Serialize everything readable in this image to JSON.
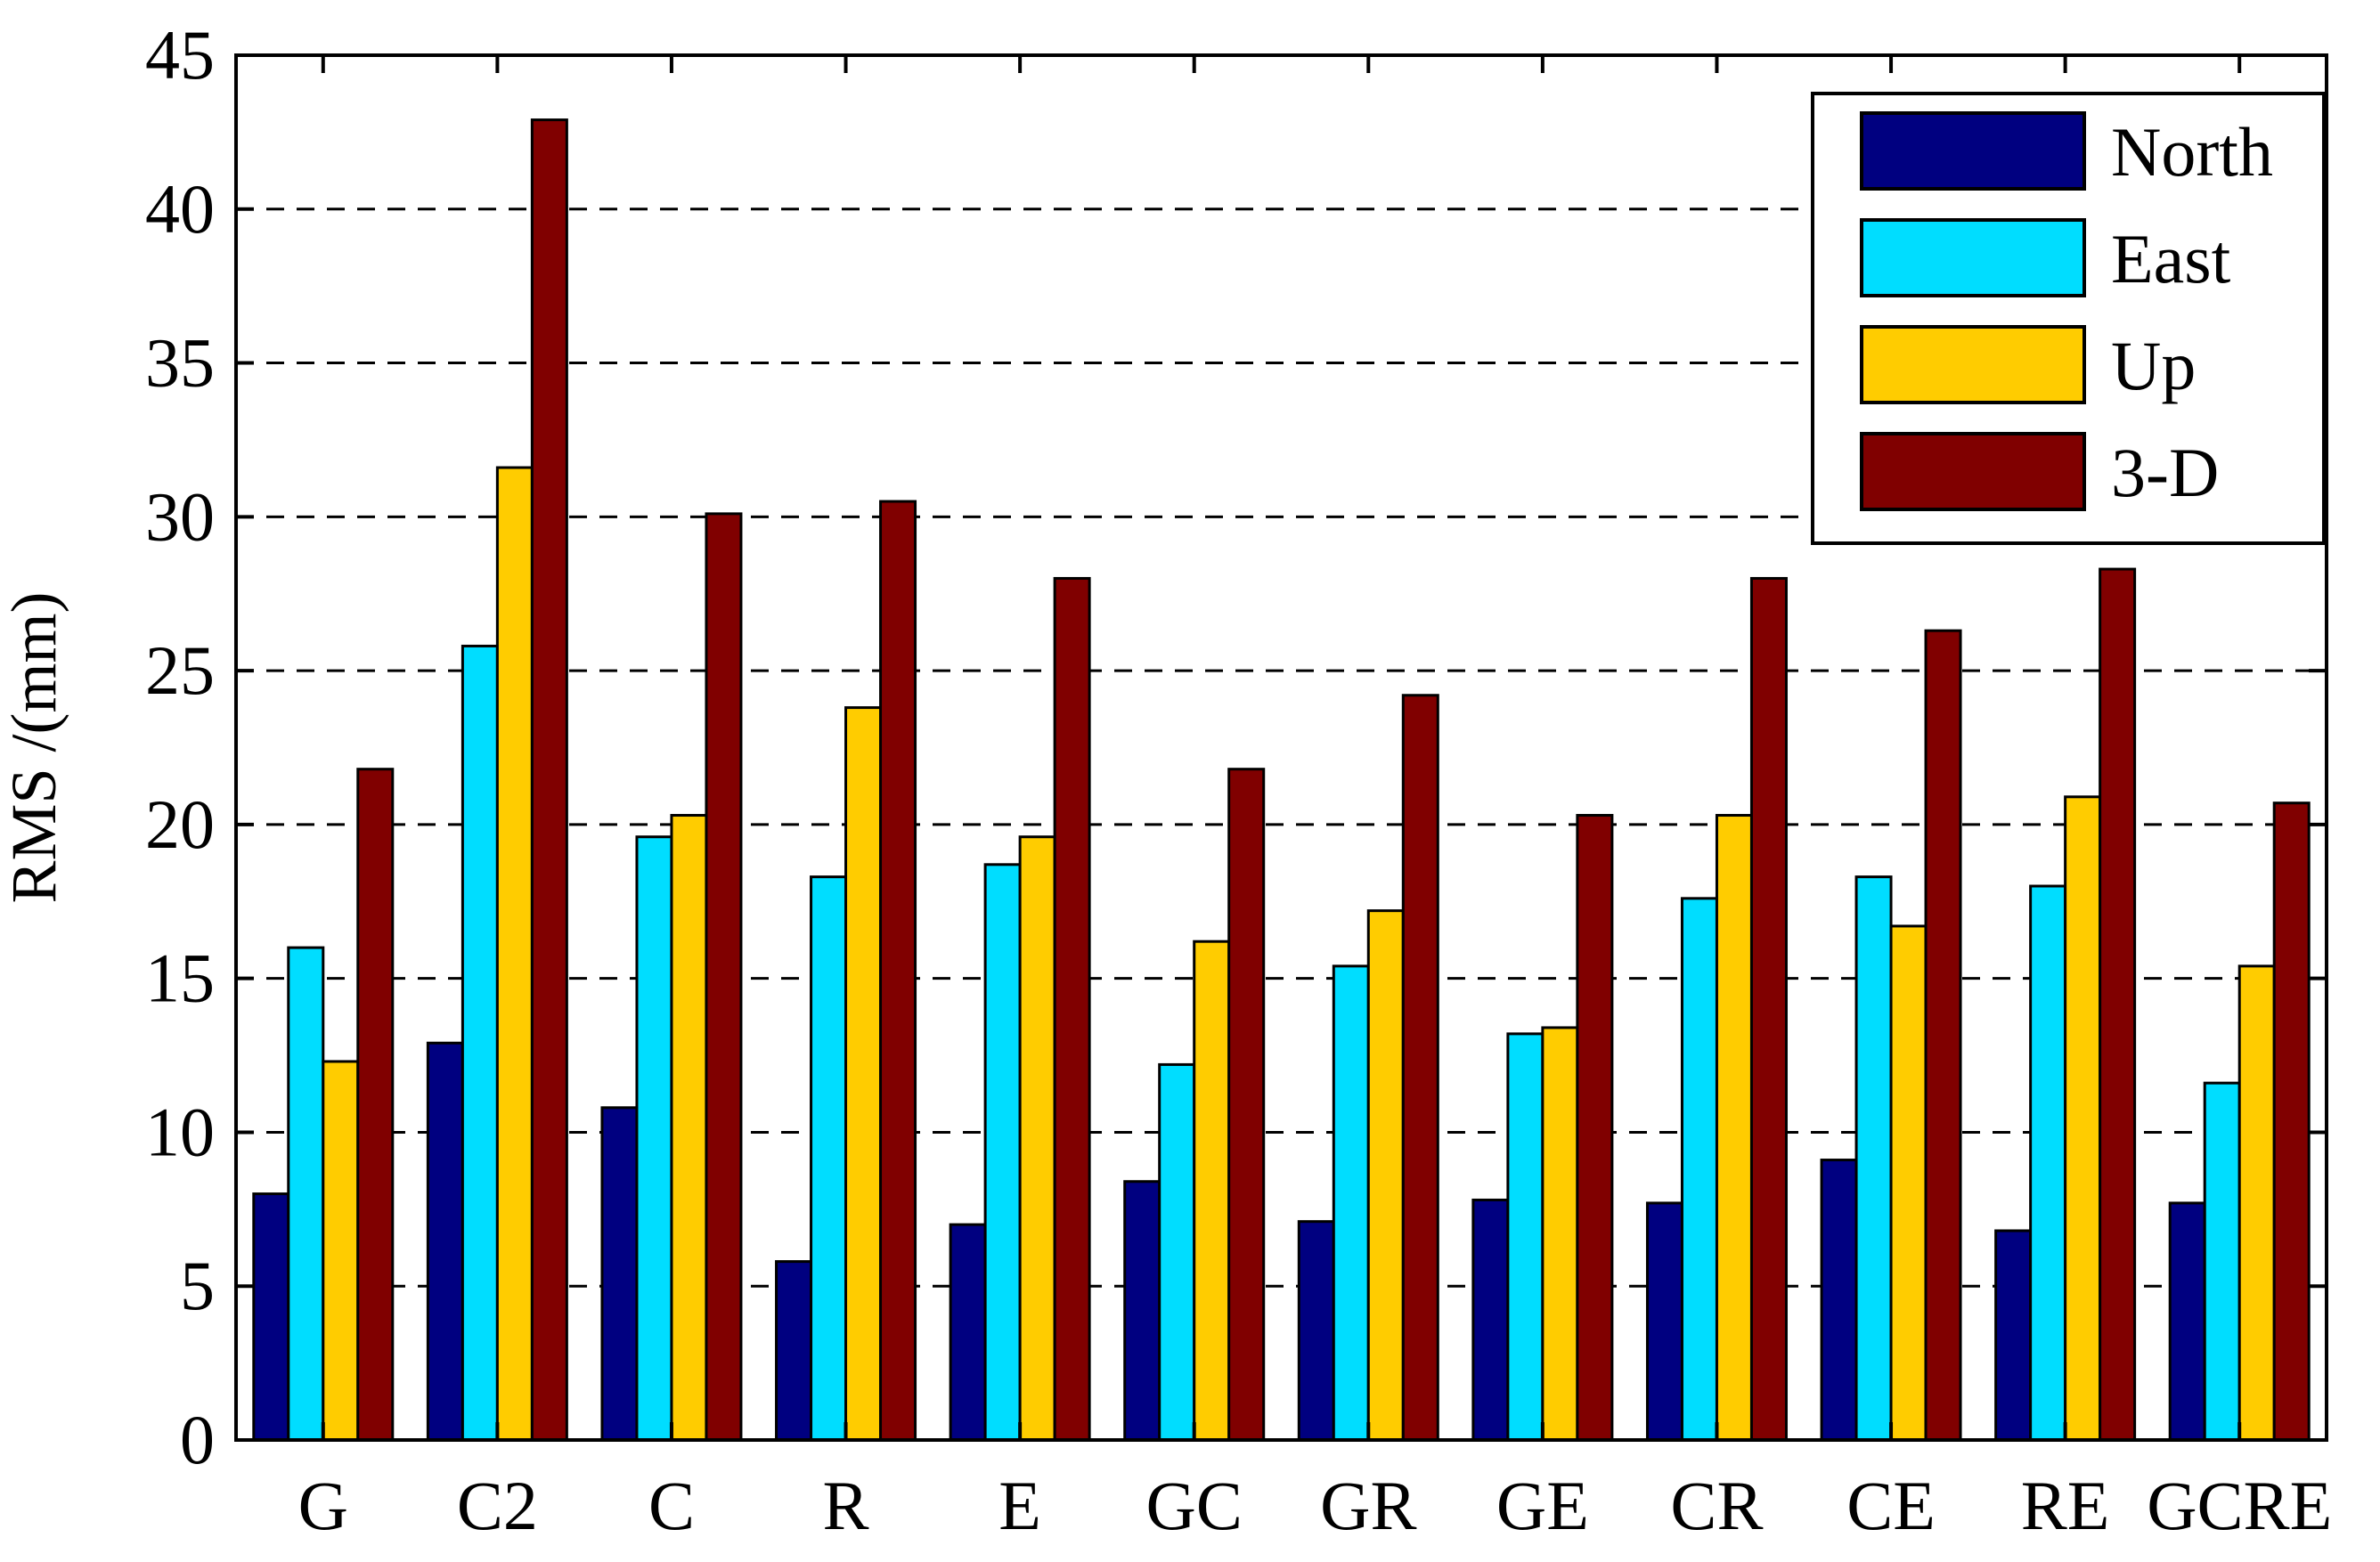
{
  "chart_data": {
    "type": "bar",
    "title": "",
    "xlabel": "",
    "ylabel": "RMS /(mm)",
    "ylim": [
      0,
      45
    ],
    "yticks": [
      0,
      5,
      10,
      15,
      20,
      25,
      30,
      35,
      40,
      45
    ],
    "grid": "horizontal dashed",
    "legend_position": "top-right",
    "categories": [
      "G",
      "C2",
      "C",
      "R",
      "E",
      "GC",
      "GR",
      "GE",
      "CR",
      "CE",
      "RE",
      "GCRE"
    ],
    "series": [
      {
        "name": "North",
        "color": "#000080",
        "values": [
          8.0,
          12.9,
          10.8,
          5.8,
          7.0,
          8.4,
          7.1,
          7.8,
          7.7,
          9.1,
          6.8,
          7.7
        ]
      },
      {
        "name": "East",
        "color": "#00DDFF",
        "values": [
          16.0,
          25.8,
          19.6,
          18.3,
          18.7,
          12.2,
          15.4,
          13.2,
          17.6,
          18.3,
          18.0,
          11.6
        ]
      },
      {
        "name": "Up",
        "color": "#FFCC00",
        "values": [
          12.3,
          31.6,
          20.3,
          23.8,
          19.6,
          16.2,
          17.2,
          13.4,
          20.3,
          16.7,
          20.9,
          15.4
        ]
      },
      {
        "name": "3-D",
        "color": "#800000",
        "values": [
          21.8,
          42.9,
          30.1,
          30.5,
          28.0,
          21.8,
          24.2,
          20.3,
          28.0,
          26.3,
          28.3,
          20.7
        ]
      }
    ]
  }
}
